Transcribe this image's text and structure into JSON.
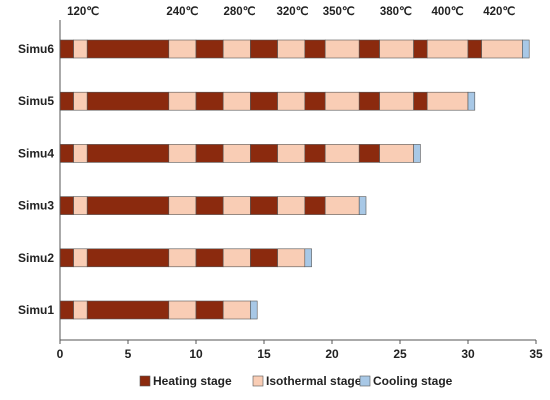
{
  "chart_data": {
    "type": "bar",
    "orientation": "horizontal",
    "stacked": true,
    "categories": [
      "Simu6",
      "Simu5",
      "Simu4",
      "Simu3",
      "Simu2",
      "Simu1"
    ],
    "xlim": [
      0,
      35
    ],
    "xticks": [
      0,
      5,
      10,
      15,
      20,
      25,
      30,
      35
    ],
    "stages": [
      {
        "name": "Heating stage",
        "color": "#8B2A0E"
      },
      {
        "name": "Isothermal stage",
        "color": "#F9CDB5"
      },
      {
        "name": "Cooling stage",
        "color": "#A8C8E6"
      }
    ],
    "temperature_labels": [
      {
        "text": "120℃",
        "x": 1.7
      },
      {
        "text": "240℃",
        "x": 9.0
      },
      {
        "text": "280℃",
        "x": 13.2
      },
      {
        "text": "320℃",
        "x": 17.1
      },
      {
        "text": "350℃",
        "x": 20.5
      },
      {
        "text": "380℃",
        "x": 24.7
      },
      {
        "text": "400℃",
        "x": 28.5
      },
      {
        "text": "420℃",
        "x": 32.3
      }
    ],
    "segments": {
      "Simu1": [
        {
          "stage": 0,
          "start": 0,
          "end": 1
        },
        {
          "stage": 1,
          "start": 1,
          "end": 2
        },
        {
          "stage": 0,
          "start": 2,
          "end": 8
        },
        {
          "stage": 1,
          "start": 8,
          "end": 10
        },
        {
          "stage": 0,
          "start": 10,
          "end": 12
        },
        {
          "stage": 1,
          "start": 12,
          "end": 14
        },
        {
          "stage": 2,
          "start": 14,
          "end": 14.5
        }
      ],
      "Simu2": [
        {
          "stage": 0,
          "start": 0,
          "end": 1
        },
        {
          "stage": 1,
          "start": 1,
          "end": 2
        },
        {
          "stage": 0,
          "start": 2,
          "end": 8
        },
        {
          "stage": 1,
          "start": 8,
          "end": 10
        },
        {
          "stage": 0,
          "start": 10,
          "end": 12
        },
        {
          "stage": 1,
          "start": 12,
          "end": 14
        },
        {
          "stage": 0,
          "start": 14,
          "end": 16
        },
        {
          "stage": 1,
          "start": 16,
          "end": 18
        },
        {
          "stage": 2,
          "start": 18,
          "end": 18.5
        }
      ],
      "Simu3": [
        {
          "stage": 0,
          "start": 0,
          "end": 1
        },
        {
          "stage": 1,
          "start": 1,
          "end": 2
        },
        {
          "stage": 0,
          "start": 2,
          "end": 8
        },
        {
          "stage": 1,
          "start": 8,
          "end": 10
        },
        {
          "stage": 0,
          "start": 10,
          "end": 12
        },
        {
          "stage": 1,
          "start": 12,
          "end": 14
        },
        {
          "stage": 0,
          "start": 14,
          "end": 16
        },
        {
          "stage": 1,
          "start": 16,
          "end": 18
        },
        {
          "stage": 0,
          "start": 18,
          "end": 19.5
        },
        {
          "stage": 1,
          "start": 19.5,
          "end": 22
        },
        {
          "stage": 2,
          "start": 22,
          "end": 22.5
        }
      ],
      "Simu4": [
        {
          "stage": 0,
          "start": 0,
          "end": 1
        },
        {
          "stage": 1,
          "start": 1,
          "end": 2
        },
        {
          "stage": 0,
          "start": 2,
          "end": 8
        },
        {
          "stage": 1,
          "start": 8,
          "end": 10
        },
        {
          "stage": 0,
          "start": 10,
          "end": 12
        },
        {
          "stage": 1,
          "start": 12,
          "end": 14
        },
        {
          "stage": 0,
          "start": 14,
          "end": 16
        },
        {
          "stage": 1,
          "start": 16,
          "end": 18
        },
        {
          "stage": 0,
          "start": 18,
          "end": 19.5
        },
        {
          "stage": 1,
          "start": 19.5,
          "end": 22
        },
        {
          "stage": 0,
          "start": 22,
          "end": 23.5
        },
        {
          "stage": 1,
          "start": 23.5,
          "end": 26
        },
        {
          "stage": 2,
          "start": 26,
          "end": 26.5
        }
      ],
      "Simu5": [
        {
          "stage": 0,
          "start": 0,
          "end": 1
        },
        {
          "stage": 1,
          "start": 1,
          "end": 2
        },
        {
          "stage": 0,
          "start": 2,
          "end": 8
        },
        {
          "stage": 1,
          "start": 8,
          "end": 10
        },
        {
          "stage": 0,
          "start": 10,
          "end": 12
        },
        {
          "stage": 1,
          "start": 12,
          "end": 14
        },
        {
          "stage": 0,
          "start": 14,
          "end": 16
        },
        {
          "stage": 1,
          "start": 16,
          "end": 18
        },
        {
          "stage": 0,
          "start": 18,
          "end": 19.5
        },
        {
          "stage": 1,
          "start": 19.5,
          "end": 22
        },
        {
          "stage": 0,
          "start": 22,
          "end": 23.5
        },
        {
          "stage": 1,
          "start": 23.5,
          "end": 26
        },
        {
          "stage": 0,
          "start": 26,
          "end": 27
        },
        {
          "stage": 1,
          "start": 27,
          "end": 30
        },
        {
          "stage": 2,
          "start": 30,
          "end": 30.5
        }
      ],
      "Simu6": [
        {
          "stage": 0,
          "start": 0,
          "end": 1
        },
        {
          "stage": 1,
          "start": 1,
          "end": 2
        },
        {
          "stage": 0,
          "start": 2,
          "end": 8
        },
        {
          "stage": 1,
          "start": 8,
          "end": 10
        },
        {
          "stage": 0,
          "start": 10,
          "end": 12
        },
        {
          "stage": 1,
          "start": 12,
          "end": 14
        },
        {
          "stage": 0,
          "start": 14,
          "end": 16
        },
        {
          "stage": 1,
          "start": 16,
          "end": 18
        },
        {
          "stage": 0,
          "start": 18,
          "end": 19.5
        },
        {
          "stage": 1,
          "start": 19.5,
          "end": 22
        },
        {
          "stage": 0,
          "start": 22,
          "end": 23.5
        },
        {
          "stage": 1,
          "start": 23.5,
          "end": 26
        },
        {
          "stage": 0,
          "start": 26,
          "end": 27
        },
        {
          "stage": 1,
          "start": 27,
          "end": 30
        },
        {
          "stage": 0,
          "start": 30,
          "end": 31
        },
        {
          "stage": 1,
          "start": 31,
          "end": 34
        },
        {
          "stage": 2,
          "start": 34,
          "end": 34.5
        }
      ]
    },
    "legend_position": "bottom",
    "grid": false
  }
}
